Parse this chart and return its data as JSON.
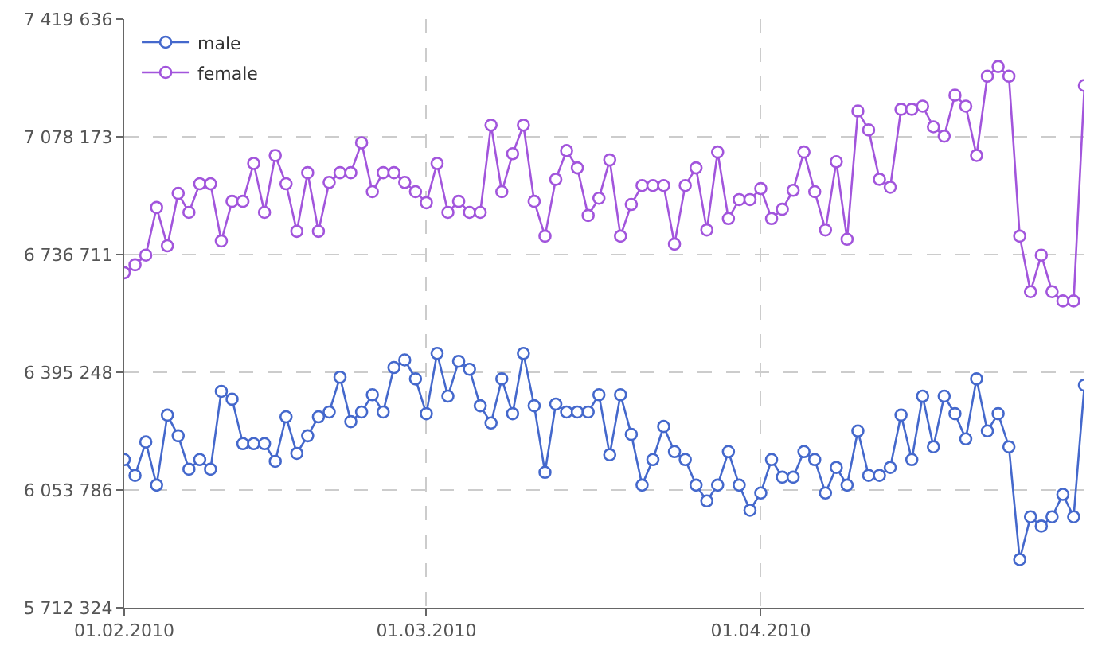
{
  "chart_data": {
    "type": "line",
    "x": [
      "2010-02-01",
      "2010-02-02",
      "2010-02-03",
      "2010-02-04",
      "2010-02-05",
      "2010-02-06",
      "2010-02-07",
      "2010-02-08",
      "2010-02-09",
      "2010-02-10",
      "2010-02-11",
      "2010-02-12",
      "2010-02-13",
      "2010-02-14",
      "2010-02-15",
      "2010-02-16",
      "2010-02-17",
      "2010-02-18",
      "2010-02-19",
      "2010-02-20",
      "2010-02-21",
      "2010-02-22",
      "2010-02-23",
      "2010-02-24",
      "2010-02-25",
      "2010-02-26",
      "2010-02-27",
      "2010-02-28",
      "2010-03-01",
      "2010-03-02",
      "2010-03-03",
      "2010-03-04",
      "2010-03-05",
      "2010-03-06",
      "2010-03-07",
      "2010-03-08",
      "2010-03-09",
      "2010-03-10",
      "2010-03-11",
      "2010-03-12",
      "2010-03-13",
      "2010-03-14",
      "2010-03-15",
      "2010-03-16",
      "2010-03-17",
      "2010-03-18",
      "2010-03-19",
      "2010-03-20",
      "2010-03-21",
      "2010-03-22",
      "2010-03-23",
      "2010-03-24",
      "2010-03-25",
      "2010-03-26",
      "2010-03-27",
      "2010-03-28",
      "2010-03-29",
      "2010-03-30",
      "2010-03-31",
      "2010-04-01",
      "2010-04-02",
      "2010-04-03",
      "2010-04-04",
      "2010-04-05",
      "2010-04-06",
      "2010-04-07",
      "2010-04-08",
      "2010-04-09",
      "2010-04-10",
      "2010-04-11",
      "2010-04-12",
      "2010-04-13",
      "2010-04-14",
      "2010-04-15",
      "2010-04-16",
      "2010-04-17",
      "2010-04-18",
      "2010-04-19",
      "2010-04-20",
      "2010-04-21",
      "2010-04-22",
      "2010-04-23",
      "2010-04-24",
      "2010-04-25",
      "2010-04-26",
      "2010-04-27",
      "2010-04-28",
      "2010-04-29",
      "2010-04-30",
      "2010-05-01"
    ],
    "series": [
      {
        "name": "male",
        "color": "#4468cc",
        "values": [
          6142000,
          6096000,
          6193000,
          6068000,
          6271000,
          6211000,
          6114000,
          6142000,
          6114000,
          6340000,
          6317000,
          6188000,
          6188000,
          6188000,
          6137000,
          6266000,
          6160000,
          6211000,
          6266000,
          6280000,
          6381000,
          6252000,
          6280000,
          6330000,
          6280000,
          6409000,
          6431000,
          6376000,
          6275000,
          6450000,
          6326000,
          6427000,
          6404000,
          6298000,
          6248000,
          6376000,
          6275000,
          6450000,
          6298000,
          6105000,
          6303000,
          6280000,
          6280000,
          6280000,
          6330000,
          6156000,
          6330000,
          6215000,
          6068000,
          6142000,
          6238000,
          6165000,
          6142000,
          6068000,
          6022000,
          6068000,
          6165000,
          6068000,
          5995000,
          6045000,
          6142000,
          6091000,
          6091000,
          6165000,
          6142000,
          6045000,
          6119000,
          6068000,
          6225000,
          6096000,
          6096000,
          6119000,
          6271000,
          6142000,
          6326000,
          6179000,
          6326000,
          6275000,
          6202000,
          6376000,
          6225000,
          6275000,
          6179000,
          5852000,
          5976000,
          5949000,
          5976000,
          6041000,
          5976000,
          6358000
        ]
      },
      {
        "name": "female",
        "color": "#a255dc",
        "values": [
          6684000,
          6707000,
          6735000,
          6873000,
          6762000,
          6914000,
          6859000,
          6942000,
          6942000,
          6776000,
          6891000,
          6891000,
          7001000,
          6859000,
          7024000,
          6942000,
          6804000,
          6974000,
          6804000,
          6946000,
          6974000,
          6974000,
          7061000,
          6919000,
          6974000,
          6974000,
          6946000,
          6919000,
          6887000,
          7001000,
          6859000,
          6891000,
          6859000,
          6859000,
          7112000,
          6919000,
          7029000,
          7112000,
          6891000,
          6790000,
          6955000,
          7038000,
          6988000,
          6850000,
          6900000,
          7011000,
          6790000,
          6882000,
          6937000,
          6937000,
          6937000,
          6767000,
          6937000,
          6988000,
          6808000,
          7034000,
          6841000,
          6896000,
          6896000,
          6928000,
          6841000,
          6868000,
          6923000,
          7034000,
          6919000,
          6808000,
          7006000,
          6781000,
          7153000,
          7098000,
          6955000,
          6932000,
          7158000,
          7158000,
          7167000,
          7107000,
          7080000,
          7199000,
          7167000,
          7024000,
          7254000,
          7282000,
          7254000,
          6790000,
          6629000,
          6735000,
          6629000,
          6602000,
          6602000,
          7227000
        ]
      }
    ],
    "xlim": [
      "2010-02-01",
      "2010-05-01"
    ],
    "xticks": [
      {
        "value": "2010-02-01",
        "label": "01.02.2010"
      },
      {
        "value": "2010-03-01",
        "label": "01.03.2010"
      },
      {
        "value": "2010-04-01",
        "label": "01.04.2010"
      }
    ],
    "ylim": [
      5712324,
      7419636
    ],
    "yticks": [
      {
        "value": 5712324,
        "label": "5 712 324"
      },
      {
        "value": 6053786,
        "label": "6 053 786"
      },
      {
        "value": 6395248,
        "label": "6 395 248"
      },
      {
        "value": 6736711,
        "label": "6 736 711"
      },
      {
        "value": 7078173,
        "label": "7 078 173"
      },
      {
        "value": 7419636,
        "label": "7 419 636"
      }
    ],
    "grid": true,
    "legend": "top left",
    "marker": "circle",
    "line_style": "solid"
  }
}
